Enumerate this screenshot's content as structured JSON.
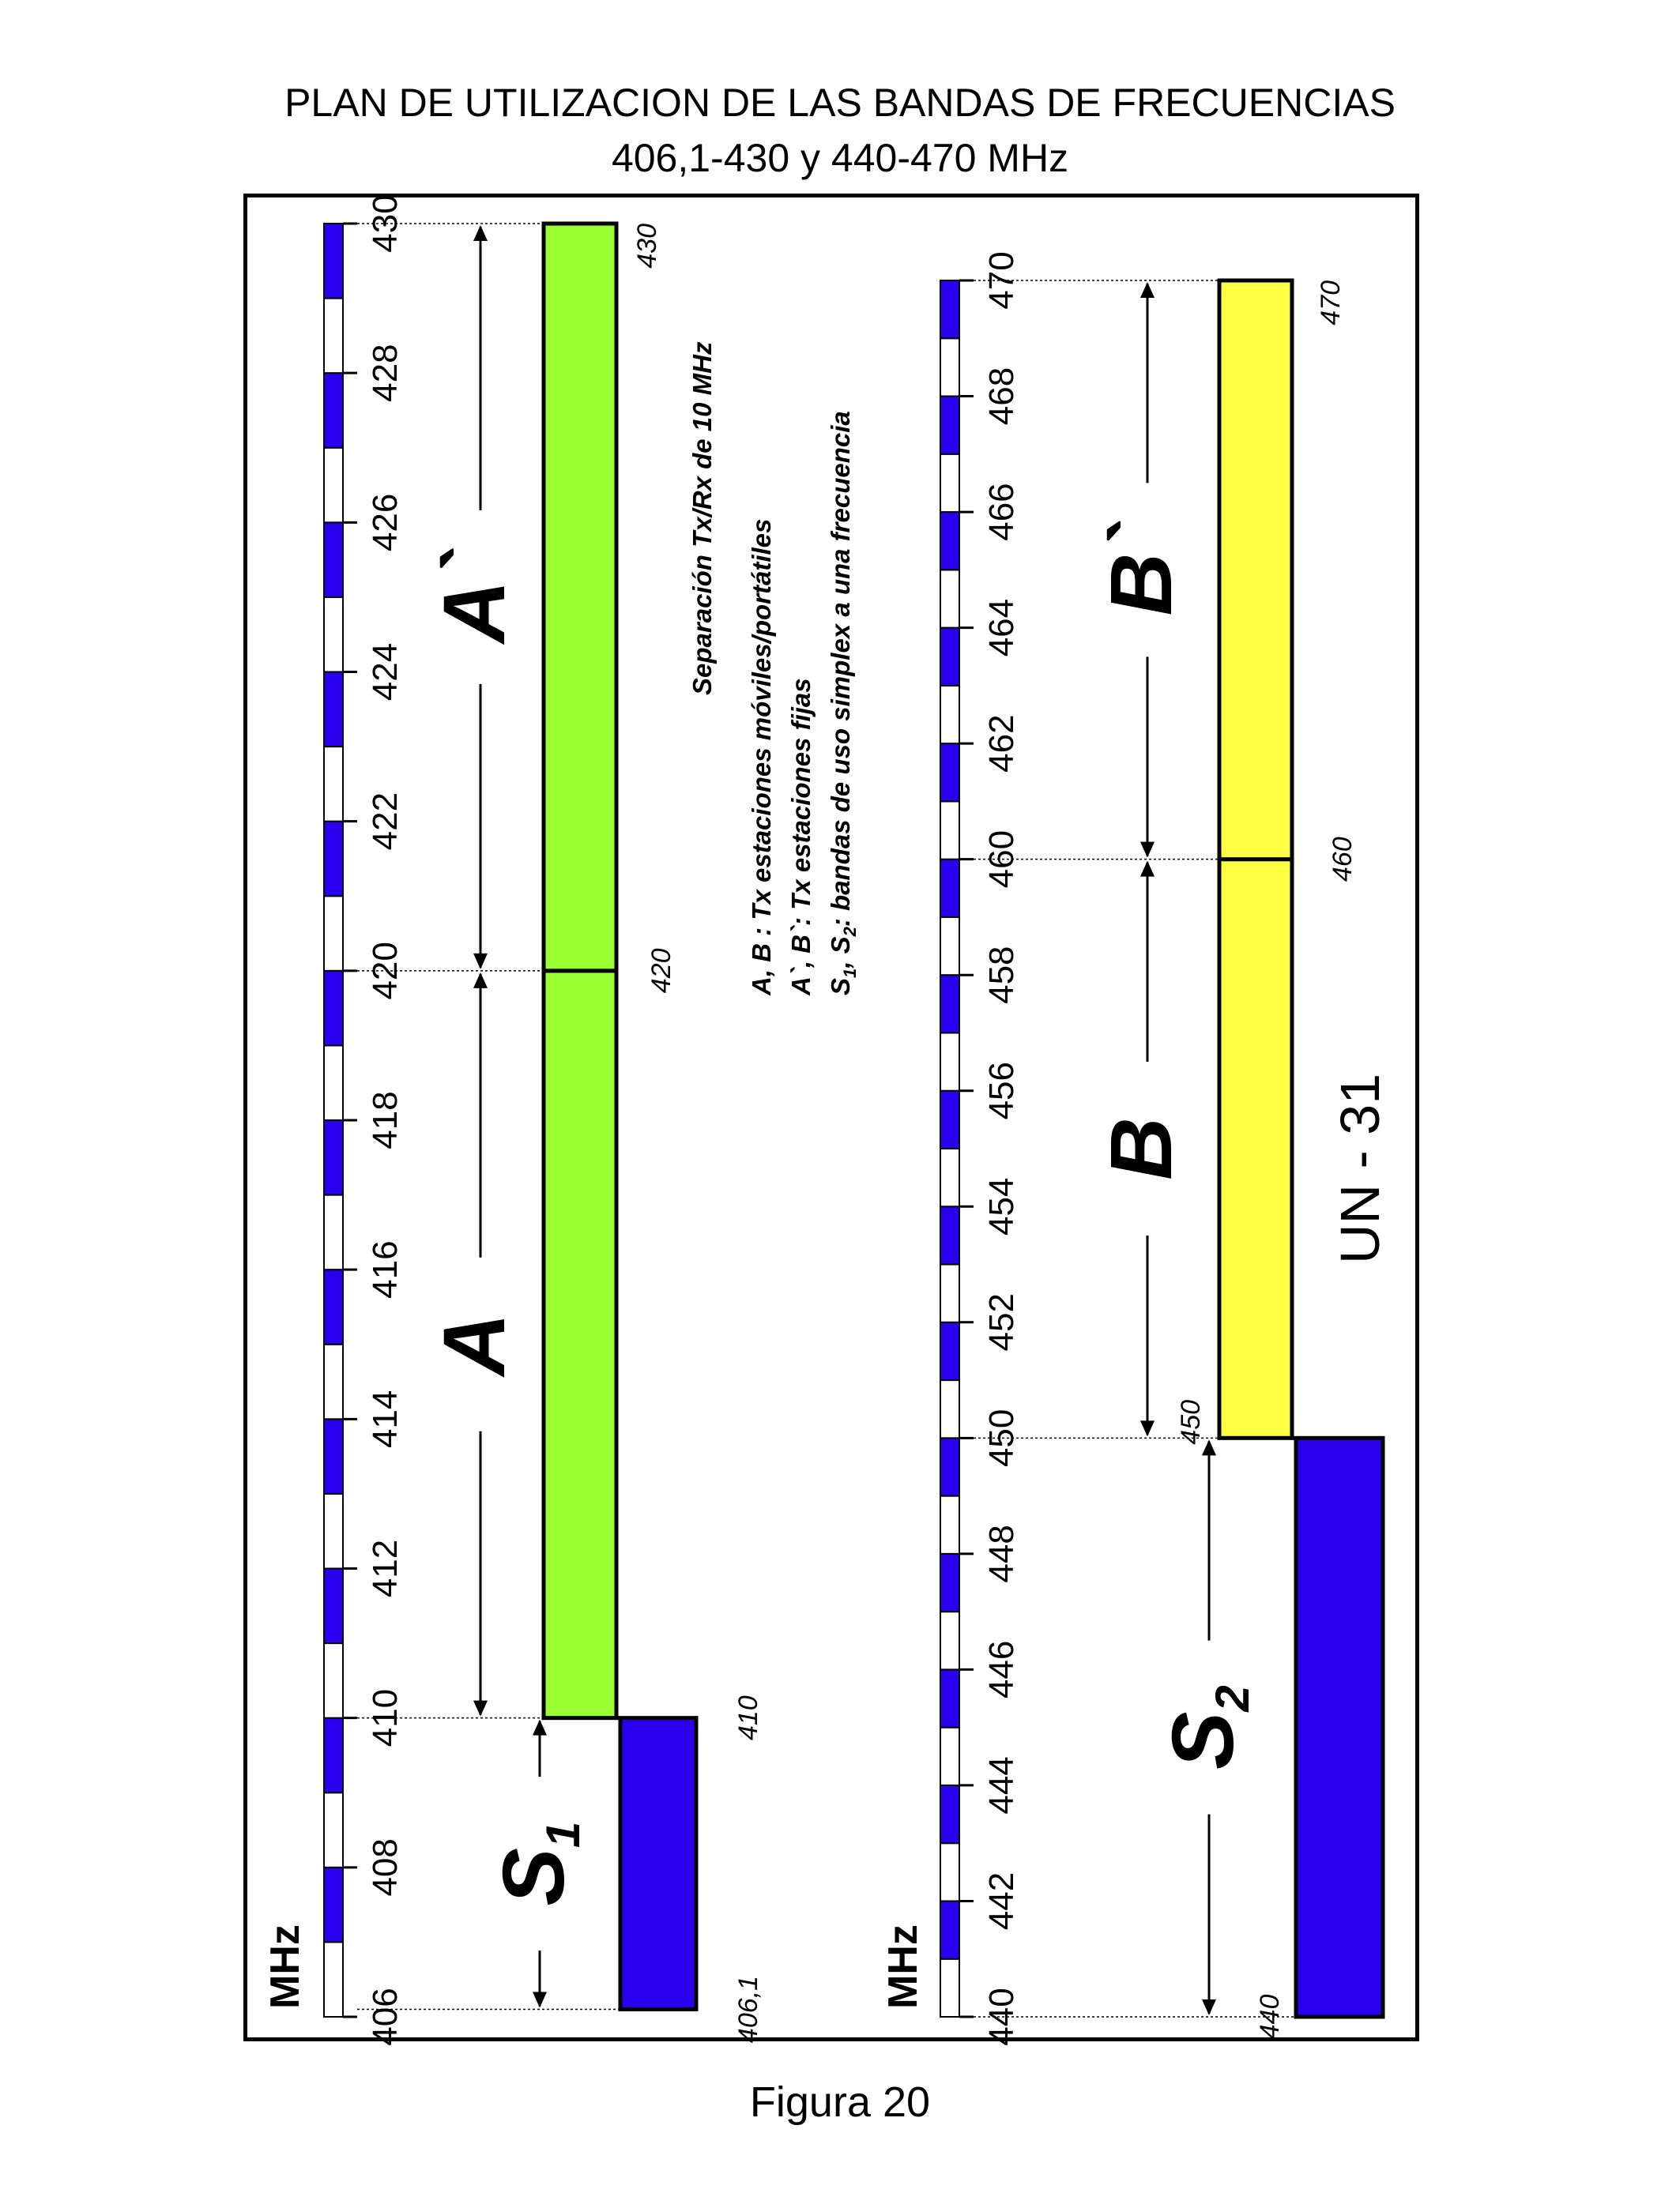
{
  "title": {
    "line1": "PLAN DE UTILIZACION DE LAS BANDAS DE FRECUENCIAS",
    "line2": "406,1-430 y 440-470 MHz"
  },
  "caption": "Figura 20",
  "unit_label": "MHz",
  "colors": {
    "green": "#99ff33",
    "yellow": "#ffff44",
    "blue": "#2a00ee",
    "ruler_blue": "#2a00ee"
  },
  "band1": {
    "range": [
      406,
      430
    ],
    "ticks": [
      "406",
      "408",
      "410",
      "412",
      "414",
      "416",
      "418",
      "420",
      "422",
      "424",
      "426",
      "428",
      "430"
    ],
    "segments": [
      {
        "name": "S1",
        "from": 406.1,
        "to": 410,
        "color": "blue",
        "column": "outer"
      },
      {
        "name": "A",
        "from": 410,
        "to": 420,
        "color": "green",
        "column": "inner"
      },
      {
        "name": "A`",
        "from": 420,
        "to": 430,
        "color": "green",
        "column": "inner"
      }
    ],
    "edge_labels": [
      "406,1",
      "410",
      "420",
      "430"
    ],
    "arrow_labels": [
      {
        "id": "S1",
        "main": "S",
        "sub": "1"
      },
      {
        "id": "A",
        "main": "A",
        "sub": ""
      },
      {
        "id": "A`",
        "main": "A`",
        "sub": ""
      }
    ]
  },
  "band2": {
    "range": [
      440,
      470
    ],
    "ticks": [
      "440",
      "442",
      "444",
      "446",
      "448",
      "450",
      "452",
      "454",
      "456",
      "458",
      "460",
      "462",
      "464",
      "466",
      "468",
      "470"
    ],
    "segments": [
      {
        "name": "S2",
        "from": 440,
        "to": 450,
        "color": "blue",
        "column": "outer"
      },
      {
        "name": "B",
        "from": 450,
        "to": 460,
        "color": "yellow",
        "column": "inner"
      },
      {
        "name": "B`",
        "from": 460,
        "to": 470,
        "color": "yellow",
        "column": "inner"
      }
    ],
    "edge_labels": [
      "440",
      "450",
      "460",
      "470"
    ],
    "arrow_labels": [
      {
        "id": "S2",
        "main": "S",
        "sub": "2"
      },
      {
        "id": "B",
        "main": "B",
        "sub": ""
      },
      {
        "id": "B`",
        "main": "B`",
        "sub": ""
      }
    ]
  },
  "legend": {
    "line1": "Separación Tx/Rx de 10 MHz",
    "line2": "A, B : Tx estaciones móviles/portátiles",
    "line3": "A`, B`: Tx estaciones fijas",
    "line4_a": "S",
    "line4_sub1": "1",
    "line4_b": ", S",
    "line4_sub2": "2",
    "line4_c": ": bandas de uso simplex a una frecuencia"
  },
  "code": "UN - 31"
}
